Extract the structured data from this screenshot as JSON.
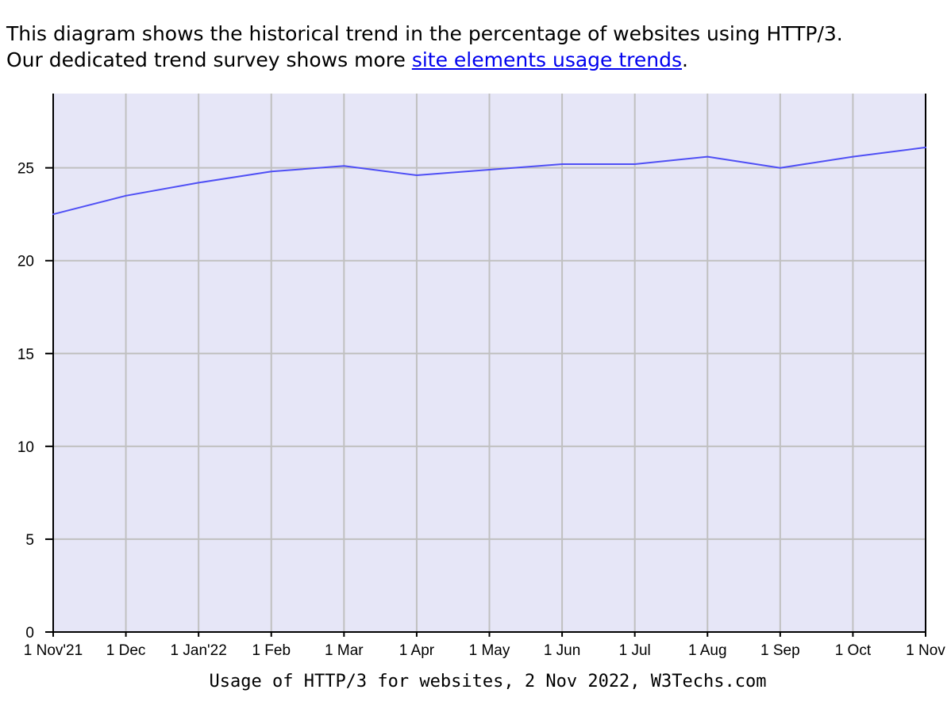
{
  "intro": {
    "line1": "This diagram shows the historical trend in the percentage of websites using HTTP/3.",
    "line2_prefix": "Our dedicated trend survey shows more ",
    "link_text": "site elements usage trends",
    "line2_suffix": "."
  },
  "chart_data": {
    "type": "line",
    "title": "",
    "caption": "Usage of HTTP/3 for websites, 2 Nov 2022, W3Techs.com",
    "xlabel": "",
    "ylabel": "",
    "x": [
      "1 Nov'21",
      "1 Dec",
      "1 Jan'22",
      "1 Feb",
      "1 Mar",
      "1 Apr",
      "1 May",
      "1 Jun",
      "1 Jul",
      "1 Aug",
      "1 Sep",
      "1 Oct",
      "1 Nov"
    ],
    "series": [
      {
        "values": [
          22.5,
          23.5,
          24.2,
          24.8,
          25.1,
          24.6,
          24.9,
          25.2,
          25.2,
          25.6,
          25.0,
          25.6,
          26.1
        ]
      }
    ],
    "yticks": [
      0,
      5,
      10,
      15,
      20,
      25
    ],
    "ylim": [
      0,
      29
    ],
    "grid": true,
    "legend": "none",
    "colors": {
      "line": "#4f4ff5",
      "plot_background": "#e6e6f7",
      "grid": "#c0c0c0",
      "axis": "#000000"
    }
  }
}
